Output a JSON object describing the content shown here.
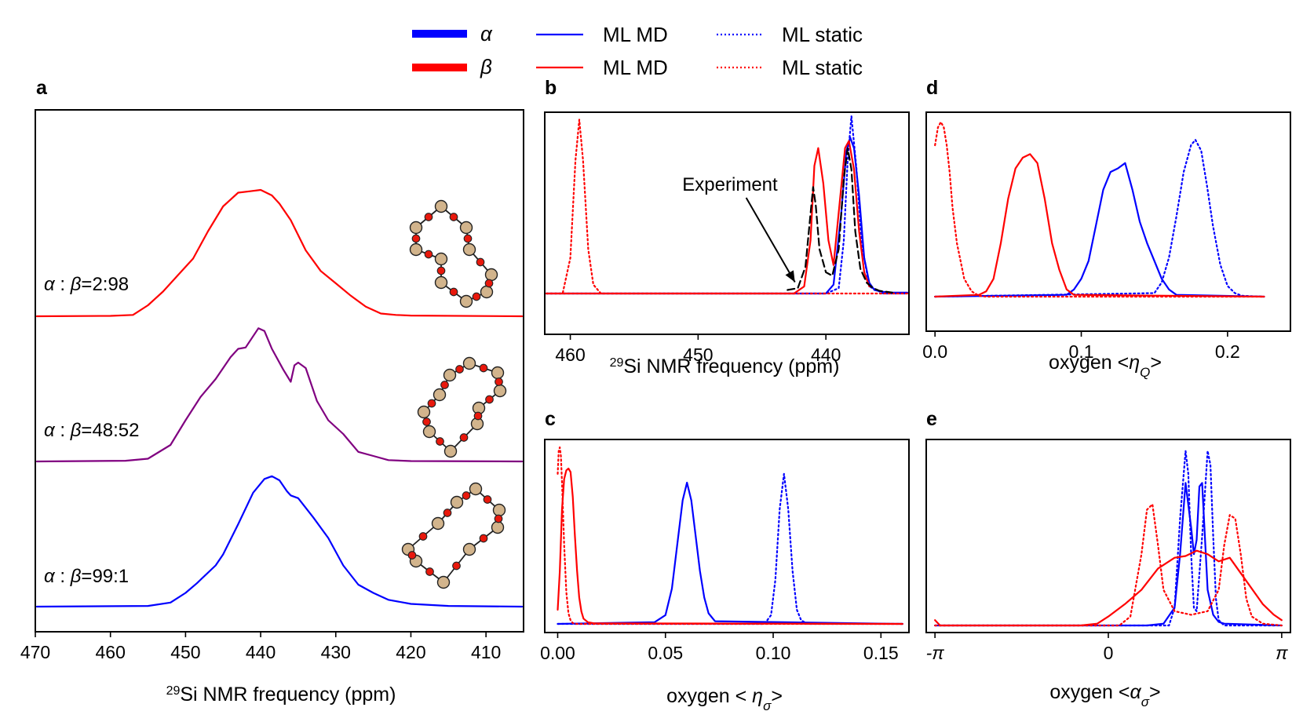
{
  "legend": {
    "rows": [
      {
        "phase": "α",
        "phase_color": "#0000ff",
        "md_label": "ML MD",
        "static_label": "ML static"
      },
      {
        "phase": "β",
        "phase_color": "#ff0000",
        "md_label": "ML MD",
        "static_label": "ML static"
      }
    ]
  },
  "colors": {
    "alpha": "#0000ff",
    "beta": "#ff0000",
    "mixed": "#800080",
    "experiment": "#000000",
    "atom_si": "#d2b48c",
    "atom_o": "#e8180c"
  },
  "chart_data": [
    {
      "id": "a",
      "panel_label": "a",
      "type": "line",
      "xlabel_sup": "29",
      "xlabel": "Si NMR frequency (ppm)",
      "xlim": [
        470,
        405
      ],
      "xticks": [
        470,
        460,
        450,
        440,
        430,
        420,
        410
      ],
      "xtick_labels": [
        "470",
        "460",
        "450",
        "440",
        "430",
        "420",
        "410"
      ],
      "series": [
        {
          "name": "α : β=99:1",
          "ratio": "99:1",
          "color": "#0000ff",
          "offset": 0.0,
          "x": [
            470,
            455,
            452,
            450,
            448.5,
            446,
            445,
            443,
            441,
            439.5,
            438.5,
            437.5,
            436.5,
            436,
            435,
            433,
            431,
            429,
            427,
            425,
            423,
            420,
            415,
            405
          ],
          "y": [
            0,
            0.005,
            0.03,
            0.1,
            0.17,
            0.3,
            0.38,
            0.6,
            0.83,
            0.93,
            0.95,
            0.92,
            0.84,
            0.81,
            0.79,
            0.65,
            0.5,
            0.3,
            0.16,
            0.1,
            0.05,
            0.02,
            0.005,
            0
          ]
        },
        {
          "name": "α : β=48:52",
          "ratio": "48:52",
          "color": "#800080",
          "offset": 0.52,
          "x": [
            470,
            458,
            455,
            452,
            450,
            448,
            446,
            444,
            443,
            442,
            440.3,
            439.5,
            438.5,
            437,
            436,
            435.5,
            435,
            434,
            432.5,
            431,
            429,
            427,
            425,
            423,
            420,
            405
          ],
          "y": [
            0,
            0.005,
            0.02,
            0.12,
            0.3,
            0.47,
            0.6,
            0.76,
            0.82,
            0.83,
            0.97,
            0.95,
            0.82,
            0.67,
            0.58,
            0.7,
            0.72,
            0.68,
            0.44,
            0.3,
            0.2,
            0.07,
            0.04,
            0.01,
            0.003,
            0
          ]
        },
        {
          "name": "α : β=2:98",
          "ratio": "2:98",
          "color": "#ff0000",
          "offset": 1.04,
          "x": [
            470,
            460,
            457,
            455,
            453,
            451,
            449,
            447,
            445,
            443,
            441.5,
            440,
            438.5,
            437.5,
            436,
            434,
            432,
            430,
            428,
            426,
            424,
            422,
            420,
            405
          ],
          "y": [
            0,
            0.003,
            0.01,
            0.08,
            0.18,
            0.3,
            0.42,
            0.62,
            0.8,
            0.9,
            0.91,
            0.92,
            0.88,
            0.82,
            0.7,
            0.48,
            0.33,
            0.24,
            0.15,
            0.07,
            0.02,
            0.01,
            0.005,
            0
          ]
        }
      ]
    },
    {
      "id": "b",
      "panel_label": "b",
      "type": "line",
      "xlabel_sup": "29",
      "xlabel": "Si NMR frequency (ppm)",
      "xlim": [
        462,
        433.5
      ],
      "xticks": [
        460,
        450,
        440
      ],
      "xtick_labels": [
        "460",
        "450",
        "440"
      ],
      "annotation": {
        "text": "Experiment",
        "xy": [
          442.3,
          0.02
        ],
        "xytext": [
          445.5,
          0.5
        ]
      },
      "series": [
        {
          "name": "α ML MD",
          "color": "#0000ff",
          "style": "solid",
          "x": [
            462,
            440,
            439.4,
            438.8,
            438.4,
            438.1,
            437.8,
            437.4,
            437,
            436.6,
            436.2,
            435.6,
            434.8,
            433.5
          ],
          "y": [
            0,
            0,
            0.05,
            0.45,
            0.8,
            0.88,
            0.82,
            0.55,
            0.2,
            0.06,
            0.02,
            0.01,
            0.005,
            0.005
          ]
        },
        {
          "name": "α ML static",
          "color": "#0000ff",
          "style": "dotted",
          "x": [
            462,
            440,
            439,
            438.6,
            438.3,
            438,
            437.6,
            437.2,
            436.6,
            435.5,
            433.5
          ],
          "y": [
            0,
            0,
            0.03,
            0.3,
            0.75,
            1.0,
            0.7,
            0.28,
            0.04,
            0,
            0
          ]
        },
        {
          "name": "β ML MD",
          "color": "#ff0000",
          "style": "solid",
          "x": [
            462,
            442.5,
            441.7,
            441.2,
            440.9,
            440.6,
            440.2,
            439.8,
            439.4,
            438.8,
            438.5,
            438.2,
            437.8,
            437.4,
            437,
            436.6
          ],
          "y": [
            0,
            0,
            0.04,
            0.3,
            0.72,
            0.82,
            0.62,
            0.3,
            0.16,
            0.6,
            0.82,
            0.86,
            0.7,
            0.35,
            0.12,
            0.04
          ]
        },
        {
          "name": "β ML static",
          "color": "#ff0000",
          "style": "dotted",
          "x": [
            462,
            460.6,
            460,
            459.6,
            459.3,
            459,
            458.6,
            458.2,
            457.6,
            433.5
          ],
          "y": [
            0,
            0,
            0.2,
            0.75,
            0.98,
            0.75,
            0.25,
            0.05,
            0,
            0
          ]
        },
        {
          "name": "Experiment",
          "color": "#000000",
          "style": "dashed",
          "x": [
            443,
            442.2,
            441.6,
            441.2,
            441,
            440.8,
            440.5,
            440,
            439.5,
            439,
            438.6,
            438.3,
            438,
            437.7,
            437.3,
            436.8,
            436.3,
            435.8,
            435.3,
            434.8
          ],
          "y": [
            0.02,
            0.03,
            0.15,
            0.45,
            0.6,
            0.5,
            0.25,
            0.12,
            0.1,
            0.25,
            0.65,
            0.82,
            0.7,
            0.35,
            0.14,
            0.06,
            0.03,
            0.015,
            0.01,
            0.005
          ]
        }
      ]
    },
    {
      "id": "c",
      "panel_label": "c",
      "type": "line",
      "xlabel": "oxygen  < ησ>",
      "xlim": [
        -0.006,
        0.163
      ],
      "xticks": [
        0.0,
        0.05,
        0.1,
        0.15
      ],
      "xtick_labels": [
        "0.00",
        "0.05",
        "0.10",
        "0.15"
      ],
      "series": [
        {
          "name": "α ML MD",
          "color": "#0000ff",
          "style": "solid",
          "x": [
            0,
            0.045,
            0.05,
            0.053,
            0.056,
            0.058,
            0.06,
            0.062,
            0.064,
            0.066,
            0.068,
            0.07,
            0.073,
            0.16
          ],
          "y": [
            0,
            0.01,
            0.05,
            0.2,
            0.5,
            0.7,
            0.8,
            0.7,
            0.5,
            0.3,
            0.15,
            0.06,
            0.015,
            0
          ]
        },
        {
          "name": "α ML static",
          "color": "#0000ff",
          "style": "dotted",
          "x": [
            0,
            0.096,
            0.099,
            0.101,
            0.103,
            0.105,
            0.107,
            0.109,
            0.111,
            0.113,
            0.116,
            0.16
          ],
          "y": [
            0,
            0,
            0.05,
            0.25,
            0.65,
            0.85,
            0.65,
            0.3,
            0.08,
            0.02,
            0,
            0
          ]
        },
        {
          "name": "β ML MD",
          "color": "#ff0000",
          "style": "solid",
          "x": [
            0,
            0.001,
            0.002,
            0.003,
            0.004,
            0.005,
            0.006,
            0.007,
            0.008,
            0.009,
            0.01,
            0.011,
            0.012,
            0.014,
            0.017,
            0.16
          ],
          "y": [
            0.08,
            0.3,
            0.65,
            0.82,
            0.87,
            0.88,
            0.86,
            0.72,
            0.5,
            0.3,
            0.15,
            0.07,
            0.03,
            0.01,
            0.003,
            0
          ]
        },
        {
          "name": "β ML static",
          "color": "#ff0000",
          "style": "dotted",
          "x": [
            0,
            0.0005,
            0.001,
            0.0015,
            0.002,
            0.003,
            0.004,
            0.005,
            0.006,
            0.007,
            0.009,
            0.16
          ],
          "y": [
            0.85,
            0.98,
            1.0,
            0.95,
            0.8,
            0.45,
            0.18,
            0.06,
            0.02,
            0.005,
            0,
            0
          ]
        }
      ]
    },
    {
      "id": "d",
      "panel_label": "d",
      "type": "line",
      "xlabel": "oxygen <ηQ>",
      "xlim": [
        -0.006,
        0.243
      ],
      "xticks": [
        0.0,
        0.1,
        0.2
      ],
      "xtick_labels": [
        "0.0",
        "0.1",
        "0.2"
      ],
      "series": [
        {
          "name": "α ML MD",
          "color": "#0000ff",
          "style": "solid",
          "x": [
            0,
            0.09,
            0.095,
            0.1,
            0.105,
            0.11,
            0.115,
            0.12,
            0.125,
            0.13,
            0.135,
            0.14,
            0.145,
            0.15,
            0.155,
            0.16,
            0.165,
            0.225
          ],
          "y": [
            0,
            0.01,
            0.04,
            0.1,
            0.2,
            0.4,
            0.6,
            0.7,
            0.72,
            0.75,
            0.6,
            0.42,
            0.3,
            0.2,
            0.1,
            0.04,
            0.01,
            0
          ]
        },
        {
          "name": "α ML static",
          "color": "#0000ff",
          "style": "dotted",
          "x": [
            0,
            0.15,
            0.155,
            0.16,
            0.165,
            0.17,
            0.175,
            0.178,
            0.182,
            0.186,
            0.19,
            0.195,
            0.2,
            0.205,
            0.21,
            0.225
          ],
          "y": [
            0,
            0.02,
            0.08,
            0.22,
            0.45,
            0.7,
            0.85,
            0.88,
            0.82,
            0.62,
            0.4,
            0.18,
            0.06,
            0.02,
            0.005,
            0
          ]
        },
        {
          "name": "β ML MD",
          "color": "#ff0000",
          "style": "solid",
          "x": [
            0,
            0.03,
            0.035,
            0.04,
            0.045,
            0.05,
            0.055,
            0.06,
            0.065,
            0.07,
            0.075,
            0.08,
            0.085,
            0.09,
            0.095,
            0.225
          ],
          "y": [
            0,
            0.01,
            0.03,
            0.1,
            0.3,
            0.55,
            0.72,
            0.78,
            0.8,
            0.75,
            0.55,
            0.3,
            0.15,
            0.04,
            0.01,
            0
          ]
        },
        {
          "name": "β ML static",
          "color": "#ff0000",
          "style": "dotted",
          "x": [
            0,
            0.002,
            0.004,
            0.006,
            0.008,
            0.01,
            0.012,
            0.015,
            0.02,
            0.025,
            0.03,
            0.035,
            0.225
          ],
          "y": [
            0.85,
            0.95,
            0.98,
            0.95,
            0.85,
            0.7,
            0.5,
            0.3,
            0.1,
            0.03,
            0.005,
            0,
            0
          ]
        }
      ]
    },
    {
      "id": "e",
      "panel_label": "e",
      "type": "line",
      "xlabel": "oxygen <ασ>",
      "xlim": [
        -3.3,
        3.3
      ],
      "xticks": [
        -3.14159,
        0,
        3.14159
      ],
      "xtick_labels": [
        "-π",
        "0",
        "π"
      ],
      "series": [
        {
          "name": "α ML MD",
          "color": "#0000ff",
          "style": "solid",
          "x": [
            -3.14,
            0.7,
            1.0,
            1.2,
            1.3,
            1.4,
            1.5,
            1.55,
            1.6,
            1.65,
            1.7,
            1.75,
            1.8,
            1.9,
            2.0,
            2.1,
            3.14
          ],
          "y": [
            0,
            0,
            0.01,
            0.1,
            0.4,
            0.8,
            0.55,
            0.4,
            0.48,
            0.78,
            0.8,
            0.5,
            0.2,
            0.06,
            0.02,
            0.01,
            0
          ]
        },
        {
          "name": "α ML static",
          "color": "#0000ff",
          "style": "dotted",
          "x": [
            -3.14,
            1.1,
            1.2,
            1.3,
            1.4,
            1.45,
            1.5,
            1.55,
            1.6,
            1.7,
            1.8,
            1.85,
            1.9,
            1.95,
            2.0,
            2.1,
            3.14
          ],
          "y": [
            0,
            0,
            0.1,
            0.6,
            0.98,
            0.85,
            0.4,
            0.1,
            0.08,
            0.5,
            0.98,
            0.9,
            0.5,
            0.15,
            0.03,
            0,
            0
          ]
        },
        {
          "name": "β ML MD",
          "color": "#ff0000",
          "style": "solid",
          "x": [
            -3.14,
            -3.05,
            -2.9,
            -0.5,
            -0.2,
            0,
            0.3,
            0.6,
            0.9,
            1.2,
            1.4,
            1.6,
            1.8,
            2.0,
            2.2,
            2.5,
            2.8,
            3.0,
            3.14
          ],
          "y": [
            0.03,
            0.0,
            0,
            0,
            0.01,
            0.05,
            0.12,
            0.2,
            0.32,
            0.38,
            0.39,
            0.42,
            0.4,
            0.36,
            0.38,
            0.25,
            0.12,
            0.06,
            0.03
          ]
        },
        {
          "name": "β ML static",
          "color": "#ff0000",
          "style": "dotted",
          "x": [
            -3.14,
            0.2,
            0.4,
            0.6,
            0.7,
            0.8,
            0.9,
            1.0,
            1.2,
            1.5,
            1.8,
            2.0,
            2.1,
            2.2,
            2.3,
            2.4,
            2.5,
            2.6,
            2.8,
            3.14
          ],
          "y": [
            0,
            0,
            0.05,
            0.4,
            0.65,
            0.68,
            0.45,
            0.2,
            0.08,
            0.06,
            0.08,
            0.2,
            0.45,
            0.62,
            0.6,
            0.4,
            0.15,
            0.05,
            0.01,
            0
          ]
        }
      ]
    }
  ]
}
